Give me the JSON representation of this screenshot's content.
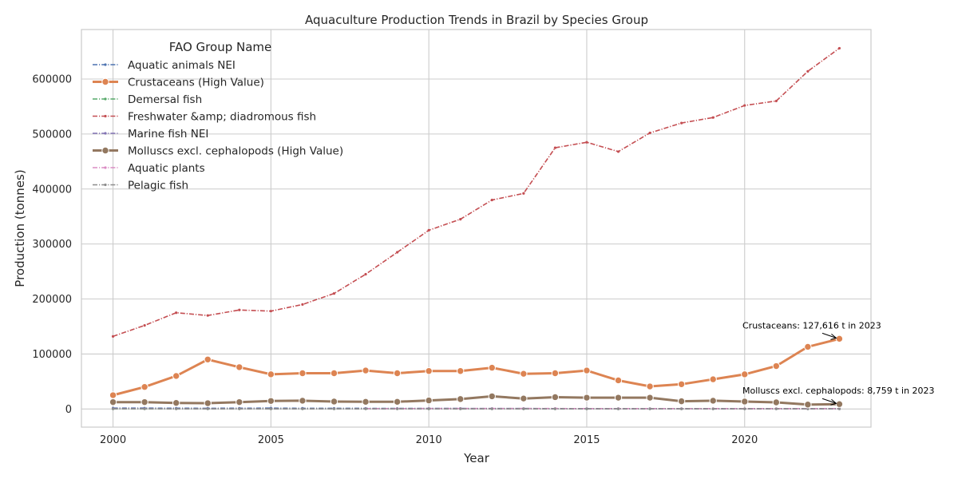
{
  "chart_data": {
    "type": "line",
    "title": "Aquaculture Production Trends in Brazil by Species Group",
    "xlabel": "Year",
    "ylabel": "Production (tonnes)",
    "xlim": [
      1999,
      2024
    ],
    "ylim": [
      -33000,
      690000
    ],
    "x_ticks": [
      2000,
      2005,
      2010,
      2015,
      2020
    ],
    "y_ticks": [
      0,
      100000,
      200000,
      300000,
      400000,
      500000,
      600000
    ],
    "grid": true,
    "legend": {
      "title": "FAO Group Name",
      "placement": "top-left"
    },
    "x": [
      2000,
      2001,
      2002,
      2003,
      2004,
      2005,
      2006,
      2007,
      2008,
      2009,
      2010,
      2011,
      2012,
      2013,
      2014,
      2015,
      2016,
      2017,
      2018,
      2019,
      2020,
      2021,
      2022,
      2023
    ],
    "series": [
      {
        "name": "Aquatic animals NEI",
        "color": "#4c72b0",
        "style": "dashdot",
        "highlight": false,
        "values": [
          1500,
          1600,
          1400,
          1300,
          1400,
          1500,
          1300,
          1200,
          1100,
          1000,
          900,
          900,
          800,
          800,
          700,
          700,
          600,
          600,
          600,
          500,
          500,
          500,
          500,
          500
        ]
      },
      {
        "name": "Crustaceans (High Value)",
        "color": "#dd8452",
        "style": "solid",
        "highlight": true,
        "values": [
          25000,
          40000,
          60000,
          90000,
          76000,
          63000,
          65000,
          65000,
          70000,
          65000,
          69000,
          69000,
          75000,
          64000,
          65000,
          70000,
          52000,
          41000,
          45000,
          54000,
          63000,
          78000,
          113000,
          127616
        ]
      },
      {
        "name": "Demersal fish",
        "color": "#55a868",
        "style": "dashdot",
        "highlight": false,
        "values": [
          300,
          300,
          300,
          300,
          300,
          300,
          300,
          300,
          300,
          300,
          300,
          300,
          300,
          300,
          300,
          300,
          300,
          300,
          300,
          300,
          300,
          300,
          300,
          300
        ]
      },
      {
        "name": "Freshwater &amp; diadromous fish",
        "color": "#c44e52",
        "style": "dashdot",
        "highlight": false,
        "values": [
          132000,
          152000,
          175000,
          170000,
          180000,
          178000,
          190000,
          210000,
          245000,
          285000,
          325000,
          345000,
          380000,
          392000,
          475000,
          485000,
          468000,
          502000,
          520000,
          530000,
          552000,
          560000,
          614000,
          656000
        ]
      },
      {
        "name": "Marine fish NEI",
        "color": "#8172b3",
        "style": "dashdot",
        "highlight": false,
        "values": [
          800,
          800,
          700,
          700,
          700,
          600,
          600,
          600,
          500,
          500,
          500,
          500,
          400,
          400,
          400,
          400,
          300,
          300,
          300,
          300,
          300,
          300,
          300,
          300
        ]
      },
      {
        "name": "Molluscs excl. cephalopods (High Value)",
        "color": "#937860",
        "style": "solid",
        "highlight": true,
        "values": [
          12500,
          12500,
          11000,
          10500,
          12500,
          14500,
          15000,
          13500,
          13000,
          13000,
          15500,
          18000,
          23000,
          19000,
          21500,
          20500,
          20500,
          20500,
          14000,
          15000,
          13500,
          12000,
          8000,
          8759
        ]
      },
      {
        "name": "Aquatic plants",
        "color": "#da8bc3",
        "style": "dashdot",
        "highlight": false,
        "values": [
          null,
          null,
          null,
          null,
          null,
          null,
          null,
          null,
          700,
          700,
          800,
          800,
          800,
          800,
          800,
          700,
          700,
          700,
          700,
          700,
          700,
          700,
          700,
          700
        ]
      },
      {
        "name": "Pelagic fish",
        "color": "#8c8c8c",
        "style": "dashdot",
        "highlight": false,
        "values": [
          200,
          200,
          200,
          200,
          200,
          200,
          200,
          200,
          200,
          200,
          200,
          200,
          200,
          200,
          200,
          200,
          200,
          200,
          200,
          200,
          200,
          200,
          200,
          200
        ]
      }
    ],
    "annotations": [
      {
        "text": "Crustaceans: 127,616 t in 2023",
        "x": 2023,
        "y": 127616
      },
      {
        "text": "Molluscs excl. cephalopods: 8,759 t in 2023",
        "x": 2023,
        "y": 8759
      }
    ]
  }
}
